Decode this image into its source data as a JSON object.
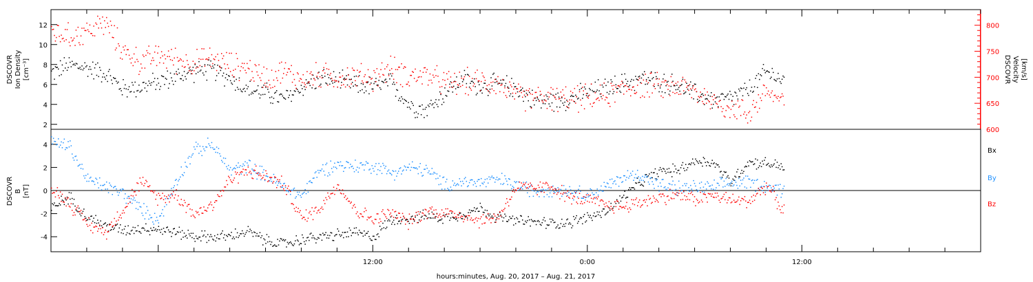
{
  "colors": {
    "black": "#000000",
    "red": "#ff0000",
    "blue": "#1e90ff"
  },
  "chart_data": [
    {
      "type": "scatter",
      "panel": "top",
      "ylabel": [
        "DSCOVR",
        "Ion Density",
        "[cm⁻³]"
      ],
      "ylabel_right": [
        "DSCOVR",
        "Velocity",
        "[km/s]"
      ],
      "ylim": [
        1.5,
        13.5
      ],
      "ylim_right": [
        600,
        830
      ],
      "yticks": [
        2,
        4,
        6,
        8,
        10,
        12
      ],
      "yticks_right": [
        600,
        650,
        700,
        750,
        800
      ],
      "xlim_hours": [
        -6,
        46
      ],
      "series": [
        {
          "axis": "left",
          "color": "black",
          "points": [
            [
              -6,
              7.2
            ],
            [
              -5,
              8.0
            ],
            [
              -4,
              7.7
            ],
            [
              -3,
              7.2
            ],
            [
              -2,
              5.6
            ],
            [
              -1,
              5.8
            ],
            [
              0,
              6.3
            ],
            [
              1,
              6.8
            ],
            [
              2,
              7.4
            ],
            [
              3,
              7.5
            ],
            [
              4,
              6.7
            ],
            [
              5,
              5.5
            ],
            [
              6,
              5.2
            ],
            [
              7,
              4.5
            ],
            [
              8,
              5.8
            ],
            [
              9,
              6.6
            ],
            [
              10,
              6.4
            ],
            [
              11,
              6.0
            ],
            [
              12,
              5.8
            ],
            [
              13,
              6.2
            ],
            [
              14,
              4.0
            ],
            [
              15,
              3.5
            ],
            [
              16,
              5.2
            ],
            [
              17,
              6.6
            ],
            [
              18,
              5.8
            ],
            [
              19,
              6.1
            ],
            [
              20,
              5.7
            ],
            [
              21,
              4.4
            ],
            [
              22,
              4.4
            ],
            [
              23,
              4.6
            ],
            [
              24,
              5.3
            ],
            [
              25,
              5.7
            ],
            [
              26,
              6.2
            ],
            [
              27,
              6.6
            ],
            [
              28,
              6.3
            ],
            [
              29,
              6.0
            ],
            [
              30,
              5.1
            ],
            [
              31,
              4.5
            ],
            [
              32,
              4.6
            ],
            [
              33,
              5.5
            ],
            [
              34,
              7.3
            ],
            [
              35,
              6.4
            ]
          ]
        },
        {
          "axis": "right",
          "color": "red",
          "points": [
            [
              -6,
              790
            ],
            [
              -5,
              778
            ],
            [
              -4,
              790
            ],
            [
              -3,
              805
            ],
            [
              -2,
              752
            ],
            [
              -1,
              730
            ],
            [
              0,
              742
            ],
            [
              1,
              735
            ],
            [
              2,
              728
            ],
            [
              3,
              736
            ],
            [
              4,
              725
            ],
            [
              5,
              718
            ],
            [
              6,
              700
            ],
            [
              7,
              712
            ],
            [
              8,
              696
            ],
            [
              9,
              705
            ],
            [
              10,
              700
            ],
            [
              11,
              703
            ],
            [
              12,
              700
            ],
            [
              13,
              718
            ],
            [
              14,
              703
            ],
            [
              15,
              705
            ],
            [
              16,
              689
            ],
            [
              17,
              691
            ],
            [
              18,
              693
            ],
            [
              19,
              690
            ],
            [
              20,
              663
            ],
            [
              21,
              662
            ],
            [
              22,
              660
            ],
            [
              23,
              660
            ],
            [
              24,
              661
            ],
            [
              25,
              664
            ],
            [
              26,
              680
            ],
            [
              27,
              686
            ],
            [
              28,
              683
            ],
            [
              29,
              685
            ],
            [
              30,
              673
            ],
            [
              31,
              655
            ],
            [
              32,
              642
            ],
            [
              33,
              632
            ],
            [
              34,
              676
            ],
            [
              35,
              650
            ]
          ]
        }
      ]
    },
    {
      "type": "scatter",
      "panel": "bottom",
      "ylabel": [
        "DSCOVR",
        "B",
        "[nT]"
      ],
      "ylim": [
        -5.3,
        5.3
      ],
      "yticks": [
        -4,
        -2,
        0,
        2,
        4
      ],
      "xlim_hours": [
        -6,
        46
      ],
      "xtick_labels": [
        {
          "hour": 12,
          "label": "12:00"
        },
        {
          "hour": 24,
          "label": "0:00"
        },
        {
          "hour": 36,
          "label": "12:00"
        }
      ],
      "xlabel": "hours:minutes, Aug. 20, 2017 – Aug. 21, 2017",
      "legend": [
        "Bx",
        "By",
        "Bz"
      ],
      "series": [
        {
          "name": "Bx",
          "color": "black",
          "points": [
            [
              -6,
              -1.5
            ],
            [
              -5,
              -0.5
            ],
            [
              -4,
              -2.2
            ],
            [
              -3,
              -3.0
            ],
            [
              -2,
              -3.4
            ],
            [
              -1,
              -3.2
            ],
            [
              0,
              -3.3
            ],
            [
              1,
              -3.6
            ],
            [
              2,
              -3.9
            ],
            [
              3,
              -4.0
            ],
            [
              4,
              -3.9
            ],
            [
              5,
              -3.5
            ],
            [
              6,
              -4.3
            ],
            [
              7,
              -4.6
            ],
            [
              8,
              -4.2
            ],
            [
              9,
              -4.0
            ],
            [
              10,
              -3.8
            ],
            [
              11,
              -3.6
            ],
            [
              12,
              -4.0
            ],
            [
              13,
              -2.5
            ],
            [
              14,
              -2.3
            ],
            [
              15,
              -2.2
            ],
            [
              16,
              -2.3
            ],
            [
              17,
              -2.0
            ],
            [
              18,
              -1.5
            ],
            [
              19,
              -2.3
            ],
            [
              20,
              -2.6
            ],
            [
              21,
              -2.7
            ],
            [
              22,
              -2.8
            ],
            [
              23,
              -2.7
            ],
            [
              24,
              -2.3
            ],
            [
              25,
              -1.8
            ],
            [
              26,
              -0.5
            ],
            [
              27,
              0.8
            ],
            [
              28,
              1.7
            ],
            [
              29,
              1.8
            ],
            [
              30,
              2.6
            ],
            [
              31,
              2.5
            ],
            [
              32,
              0.8
            ],
            [
              33,
              2.5
            ],
            [
              34,
              2.4
            ],
            [
              35,
              2.1
            ]
          ]
        },
        {
          "name": "By",
          "color": "blue",
          "points": [
            [
              -6,
              4.2
            ],
            [
              -5,
              3.9
            ],
            [
              -4,
              1.0
            ],
            [
              -3,
              0.4
            ],
            [
              -2,
              -0.2
            ],
            [
              -1,
              -1.6
            ],
            [
              0,
              -2.5
            ],
            [
              1,
              1.0
            ],
            [
              2,
              3.5
            ],
            [
              3,
              4.0
            ],
            [
              4,
              1.8
            ],
            [
              5,
              2.2
            ],
            [
              6,
              1.3
            ],
            [
              7,
              0.3
            ],
            [
              8,
              -0.4
            ],
            [
              9,
              1.8
            ],
            [
              10,
              2.3
            ],
            [
              11,
              2.1
            ],
            [
              12,
              2.2
            ],
            [
              13,
              1.6
            ],
            [
              14,
              2.0
            ],
            [
              15,
              1.8
            ],
            [
              16,
              0.5
            ],
            [
              17,
              0.8
            ],
            [
              18,
              0.7
            ],
            [
              19,
              1.0
            ],
            [
              20,
              0.5
            ],
            [
              21,
              0.0
            ],
            [
              22,
              0.2
            ],
            [
              23,
              0.0
            ],
            [
              24,
              -0.3
            ],
            [
              25,
              0.3
            ],
            [
              26,
              1.2
            ],
            [
              27,
              1.4
            ],
            [
              28,
              0.5
            ],
            [
              29,
              0.2
            ],
            [
              30,
              0.3
            ],
            [
              31,
              0.3
            ],
            [
              32,
              0.7
            ],
            [
              33,
              0.8
            ],
            [
              34,
              0.4
            ],
            [
              35,
              0.0
            ]
          ]
        },
        {
          "name": "Bz",
          "color": "red",
          "points": [
            [
              -6,
              0.2
            ],
            [
              -5,
              -1.0
            ],
            [
              -4,
              -2.8
            ],
            [
              -3,
              -3.6
            ],
            [
              -2,
              -1.6
            ],
            [
              -1,
              0.8
            ],
            [
              0,
              -0.6
            ],
            [
              1,
              -0.3
            ],
            [
              2,
              -2.0
            ],
            [
              3,
              -1.2
            ],
            [
              4,
              1.0
            ],
            [
              5,
              1.8
            ],
            [
              6,
              1.2
            ],
            [
              7,
              0.6
            ],
            [
              8,
              -2.4
            ],
            [
              9,
              -1.5
            ],
            [
              10,
              0.6
            ],
            [
              11,
              -1.6
            ],
            [
              12,
              -2.5
            ],
            [
              13,
              -1.9
            ],
            [
              14,
              -2.7
            ],
            [
              15,
              -1.7
            ],
            [
              16,
              -1.9
            ],
            [
              17,
              -2.1
            ],
            [
              18,
              -2.6
            ],
            [
              19,
              -2.2
            ],
            [
              20,
              0.3
            ],
            [
              21,
              0.2
            ],
            [
              22,
              0.4
            ],
            [
              23,
              -0.6
            ],
            [
              24,
              -0.8
            ],
            [
              25,
              -1.2
            ],
            [
              26,
              -1.4
            ],
            [
              27,
              -0.9
            ],
            [
              28,
              -0.6
            ],
            [
              29,
              -0.3
            ],
            [
              30,
              -0.7
            ],
            [
              31,
              -0.4
            ],
            [
              32,
              -0.8
            ],
            [
              33,
              -0.9
            ],
            [
              34,
              0.5
            ],
            [
              35,
              -1.8
            ]
          ]
        }
      ]
    }
  ]
}
